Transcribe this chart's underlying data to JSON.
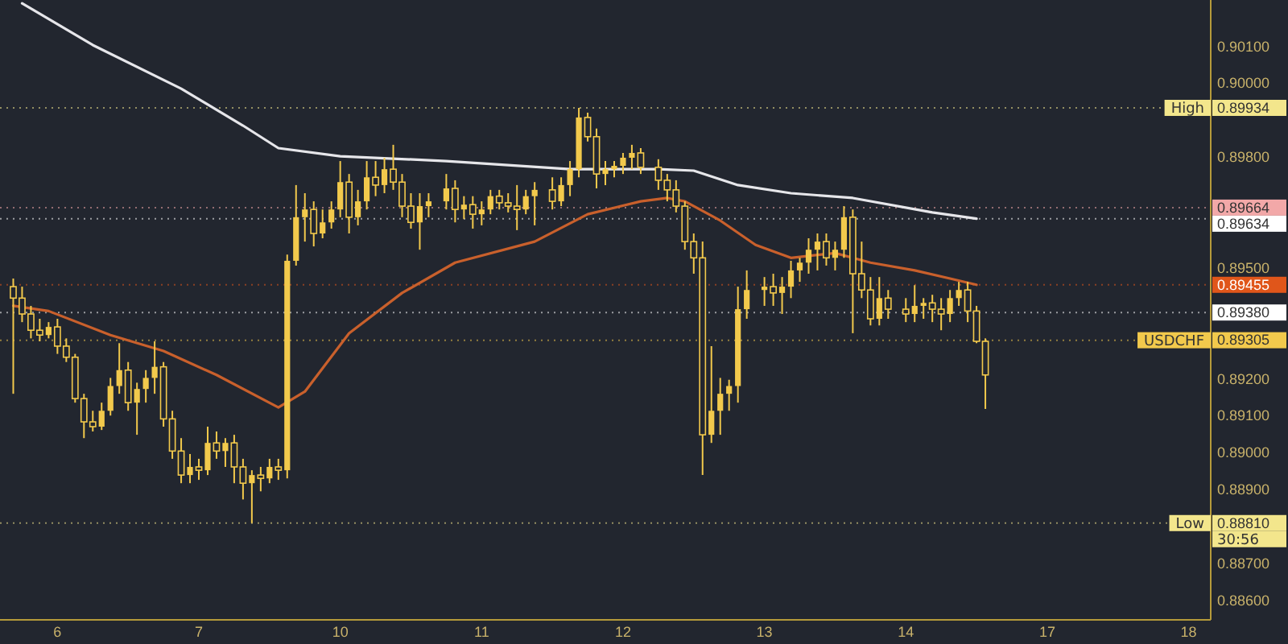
{
  "chart_data": {
    "type": "candlestick",
    "color": "#f2c94c",
    "categories": [
      null,
      null,
      null,
      null,
      null,
      null,
      "6",
      null,
      null,
      null,
      null,
      null,
      null,
      null,
      null,
      null,
      null,
      null,
      null,
      null,
      null,
      null,
      "7",
      null,
      null,
      null,
      null,
      null,
      null,
      null,
      null,
      null,
      null,
      null,
      null,
      null,
      null,
      null,
      "10",
      null,
      null,
      null,
      null,
      null,
      null,
      null,
      null,
      null,
      null,
      null,
      null,
      null,
      null,
      null,
      "11",
      null,
      null,
      null,
      null,
      null,
      null,
      null,
      null,
      null,
      null,
      null,
      null,
      null,
      null,
      null,
      "12",
      null,
      null,
      null,
      null,
      null,
      null,
      null,
      null,
      null,
      null,
      null,
      null,
      null,
      null,
      null,
      "13",
      null,
      null,
      null,
      null,
      null,
      null,
      null,
      null,
      null,
      null,
      null,
      null,
      null,
      null,
      null,
      "14",
      null,
      null,
      null,
      null,
      null,
      null,
      null,
      null,
      null,
      null,
      null,
      null,
      null,
      null,
      null,
      "17",
      null,
      null,
      null,
      null,
      null,
      null,
      null,
      null,
      null,
      null,
      null,
      null,
      null,
      null,
      null,
      "18",
      null,
      null
    ],
    "ohlc": [
      null,
      [
        0.8945,
        0.89472,
        0.8916,
        0.89419
      ],
      [
        0.89419,
        0.8945,
        0.89354,
        0.89376
      ],
      [
        0.89376,
        0.89398,
        0.8931,
        0.89332
      ],
      [
        0.89332,
        0.89363,
        0.89302,
        0.89319
      ],
      [
        0.89319,
        0.89354,
        0.8931,
        0.89341
      ],
      [
        0.89341,
        0.89363,
        0.89268,
        0.89289
      ],
      [
        0.89289,
        0.8931,
        0.89246,
        0.89259
      ],
      [
        0.89259,
        0.89268,
        0.89136,
        0.89147
      ],
      [
        0.89147,
        0.8916,
        0.8904,
        0.89084
      ],
      [
        0.89084,
        0.89114,
        0.89058,
        0.89071
      ],
      [
        0.89071,
        0.89136,
        0.89062,
        0.89114
      ],
      [
        0.89114,
        0.89203,
        0.89101,
        0.89181
      ],
      [
        0.89181,
        0.89297,
        0.8916,
        0.89224
      ],
      [
        0.89224,
        0.89246,
        0.89114,
        0.89136
      ],
      [
        0.89136,
        0.8919,
        0.89049,
        0.89173
      ],
      [
        0.89173,
        0.89224,
        0.89136,
        0.89203
      ],
      [
        0.89203,
        0.89302,
        0.8916,
        0.89233
      ],
      [
        0.89233,
        0.89246,
        0.89071,
        0.89092
      ],
      [
        0.89092,
        0.89114,
        0.88984,
        0.89005
      ],
      [
        0.89005,
        0.8904,
        0.88918,
        0.8894
      ],
      [
        0.8894,
        0.88997,
        0.88918,
        0.88962
      ],
      [
        0.88962,
        0.88984,
        0.88927,
        0.88953
      ],
      [
        0.88953,
        0.89071,
        0.8894,
        0.89027
      ],
      [
        0.89027,
        0.89058,
        0.88984,
        0.89005
      ],
      [
        0.89005,
        0.8904,
        0.88962,
        0.89027
      ],
      [
        0.89027,
        0.89049,
        0.88918,
        0.88962
      ],
      [
        0.88962,
        0.88984,
        0.88874,
        0.88918
      ],
      [
        0.88918,
        0.88953,
        0.8881,
        0.8894
      ],
      [
        0.8894,
        0.88962,
        0.88896,
        0.88931
      ],
      [
        0.88931,
        0.88984,
        0.88918,
        0.88962
      ],
      [
        0.88962,
        0.88984,
        0.88927,
        0.88953
      ],
      [
        0.88953,
        0.89537,
        0.88931,
        0.8952
      ],
      [
        0.8952,
        0.89725,
        0.89507,
        0.89638
      ],
      [
        0.89638,
        0.89703,
        0.89572,
        0.89659
      ],
      [
        0.89659,
        0.89681,
        0.89559,
        0.89594
      ],
      [
        0.89594,
        0.89659,
        0.89581,
        0.89624
      ],
      [
        0.89624,
        0.89681,
        0.89607,
        0.89659
      ],
      [
        0.89659,
        0.8979,
        0.89638,
        0.89733
      ],
      [
        0.89733,
        0.89755,
        0.89594,
        0.89638
      ],
      [
        0.89638,
        0.89712,
        0.89616,
        0.89681
      ],
      [
        0.89681,
        0.8979,
        0.89659,
        0.89746
      ],
      [
        0.89746,
        0.8979,
        0.89695,
        0.89725
      ],
      [
        0.89725,
        0.89799,
        0.89703,
        0.89768
      ],
      [
        0.89768,
        0.89834,
        0.89712,
        0.89733
      ],
      [
        0.89733,
        0.89755,
        0.89638,
        0.89668
      ],
      [
        0.89668,
        0.89703,
        0.89607,
        0.89624
      ],
      [
        0.89624,
        0.89703,
        0.8955,
        0.89668
      ],
      [
        0.89668,
        0.89703,
        0.89638,
        0.89681
      ],
      null,
      [
        0.89681,
        0.89755,
        0.89659,
        0.89716
      ],
      [
        0.89716,
        0.89738,
        0.89624,
        0.89659
      ],
      [
        0.89659,
        0.89695,
        0.89633,
        0.89672
      ],
      [
        0.89672,
        0.89695,
        0.89607,
        0.89646
      ],
      [
        0.89646,
        0.89681,
        0.89616,
        0.89659
      ],
      [
        0.89659,
        0.89712,
        0.89646,
        0.89695
      ],
      [
        0.89695,
        0.89712,
        0.89659,
        0.89677
      ],
      [
        0.89677,
        0.89703,
        0.89651,
        0.89668
      ],
      [
        0.89668,
        0.89725,
        0.89603,
        0.89659
      ],
      [
        0.89659,
        0.89712,
        0.89646,
        0.89695
      ],
      [
        0.89695,
        0.89733,
        0.89616,
        0.89712
      ],
      null,
      [
        0.89712,
        0.89746,
        0.89659,
        0.89681
      ],
      [
        0.89681,
        0.89746,
        0.89668,
        0.89725
      ],
      [
        0.89725,
        0.8979,
        0.89695,
        0.89768
      ],
      [
        0.89768,
        0.89934,
        0.89746,
        0.89908
      ],
      [
        0.89908,
        0.89921,
        0.89843,
        0.89856
      ],
      [
        0.89856,
        0.89878,
        0.89716,
        0.89755
      ],
      [
        0.89755,
        0.8979,
        0.89725,
        0.89768
      ],
      [
        0.89768,
        0.8979,
        0.89746,
        0.89777
      ],
      [
        0.89777,
        0.89812,
        0.89755,
        0.89799
      ],
      [
        0.89799,
        0.89834,
        0.89768,
        0.89812
      ],
      [
        0.89812,
        0.89825,
        0.89755,
        0.89773
      ],
      null,
      [
        0.89773,
        0.89795,
        0.89712,
        0.89738
      ],
      [
        0.89738,
        0.89755,
        0.89681,
        0.89712
      ],
      [
        0.89712,
        0.89738,
        0.89651,
        0.89668
      ],
      [
        0.89668,
        0.89681,
        0.8955,
        0.89572
      ],
      [
        0.89572,
        0.89594,
        0.89485,
        0.89528
      ],
      [
        0.89528,
        0.89572,
        0.8894,
        0.89049
      ],
      [
        0.89049,
        0.89289,
        0.89027,
        0.89114
      ],
      [
        0.89114,
        0.89203,
        0.89049,
        0.8916
      ],
      [
        0.8916,
        0.89198,
        0.89114,
        0.89181
      ],
      [
        0.89181,
        0.8945,
        0.89136,
        0.89389
      ],
      [
        0.89389,
        0.89494,
        0.89363,
        0.89441
      ],
      null,
      [
        0.89441,
        0.89476,
        0.89398,
        0.8945
      ],
      [
        0.8945,
        0.89485,
        0.89398,
        0.89433
      ],
      [
        0.89433,
        0.89476,
        0.89376,
        0.8945
      ],
      [
        0.8945,
        0.8952,
        0.89419,
        0.89494
      ],
      [
        0.89494,
        0.89528,
        0.89463,
        0.89515
      ],
      [
        0.89515,
        0.89581,
        0.89485,
        0.8955
      ],
      [
        0.8955,
        0.89594,
        0.89494,
        0.89572
      ],
      [
        0.89572,
        0.89594,
        0.89507,
        0.89528
      ],
      [
        0.89528,
        0.89572,
        0.89494,
        0.8955
      ],
      [
        0.8955,
        0.89668,
        0.89528,
        0.89638
      ],
      [
        0.89638,
        0.89659,
        0.89324,
        0.89485
      ],
      [
        0.89485,
        0.89572,
        0.89419,
        0.89441
      ],
      [
        0.89441,
        0.89476,
        0.89345,
        0.89363
      ],
      [
        0.89363,
        0.89476,
        0.89345,
        0.89419
      ],
      [
        0.89419,
        0.89441,
        0.89363,
        0.89389
      ],
      null,
      [
        0.89389,
        0.89419,
        0.89354,
        0.89376
      ],
      [
        0.89376,
        0.89454,
        0.89354,
        0.89398
      ],
      [
        0.89398,
        0.89419,
        0.89363,
        0.89406
      ],
      [
        0.89406,
        0.89428,
        0.89354,
        0.89389
      ],
      [
        0.89389,
        0.89419,
        0.89332,
        0.89376
      ],
      [
        0.89376,
        0.89441,
        0.89354,
        0.89419
      ],
      [
        0.89419,
        0.89463,
        0.89398,
        0.89441
      ],
      [
        0.89441,
        0.89463,
        0.89354,
        0.89384
      ],
      [
        0.89384,
        0.89398,
        0.89297,
        0.89302
      ],
      [
        0.89302,
        0.8931,
        0.89119,
        0.89211
      ],
      null,
      null,
      null,
      null,
      null,
      null,
      null,
      null,
      null,
      null,
      null,
      null,
      null,
      null,
      null,
      null,
      null,
      null,
      null,
      null,
      null,
      null,
      null,
      null,
      null
    ],
    "series": [
      {
        "type": "line",
        "color": "#e6e6ea",
        "values": [
          null,
          null,
          0.90217,
          null,
          null,
          null,
          null,
          null,
          null,
          null,
          0.90104,
          null,
          null,
          null,
          null,
          null,
          null,
          null,
          null,
          null,
          0.89986,
          null,
          null,
          null,
          null,
          null,
          null,
          0.89886,
          null,
          null,
          null,
          0.89825,
          null,
          null,
          null,
          null,
          null,
          null,
          0.89803,
          null,
          null,
          null,
          null,
          null,
          null,
          null,
          null,
          null,
          null,
          null,
          0.8979,
          null,
          null,
          null,
          null,
          null,
          null,
          null,
          null,
          null,
          null,
          null,
          null,
          null,
          0.89768,
          null,
          null,
          null,
          null,
          null,
          null,
          null,
          null,
          null,
          0.89768,
          null,
          null,
          null,
          0.89764,
          null,
          null,
          null,
          null,
          0.89725,
          null,
          null,
          null,
          null,
          null,
          0.89703,
          null,
          null,
          null,
          null,
          null,
          null,
          0.8969,
          null,
          null,
          null,
          null,
          null,
          null,
          null,
          null,
          0.89651,
          null,
          null,
          null,
          null,
          0.89634,
          null,
          null,
          null,
          null,
          null,
          null,
          null,
          null,
          null,
          null,
          null,
          null,
          null,
          null,
          null,
          null,
          null,
          null,
          null,
          null,
          null,
          null,
          null,
          null,
          null,
          null
        ]
      },
      {
        "type": "line",
        "color": "#c9602c",
        "values": [
          null,
          0.89398,
          null,
          null,
          null,
          0.89384,
          null,
          null,
          null,
          null,
          null,
          null,
          0.89319,
          null,
          null,
          null,
          null,
          null,
          0.89276,
          null,
          null,
          null,
          null,
          null,
          0.89211,
          null,
          null,
          null,
          null,
          null,
          null,
          0.89123,
          null,
          null,
          0.89166,
          null,
          null,
          null,
          null,
          0.89324,
          null,
          null,
          null,
          null,
          null,
          0.89433,
          null,
          null,
          null,
          null,
          null,
          0.89515,
          null,
          null,
          null,
          null,
          null,
          null,
          null,
          null,
          0.89572,
          null,
          null,
          null,
          null,
          null,
          0.89646,
          null,
          null,
          null,
          null,
          null,
          0.89681,
          null,
          null,
          0.8969,
          null,
          0.89681,
          null,
          null,
          null,
          0.89629,
          null,
          null,
          null,
          0.89563,
          null,
          null,
          null,
          0.89528,
          null,
          null,
          null,
          null,
          0.89541,
          null,
          null,
          null,
          0.89515,
          null,
          null,
          null,
          null,
          0.89494,
          null,
          null,
          null,
          0.89472,
          null,
          null,
          0.89455,
          null,
          null,
          null,
          null,
          null,
          null,
          null,
          null,
          null,
          null,
          null,
          null,
          null,
          null,
          null,
          null,
          null,
          null,
          null,
          null,
          null,
          null,
          null,
          null,
          null,
          null
        ]
      }
    ],
    "ylim": [
      0.88548,
      0.90226
    ],
    "yticks": [
      {
        "value": 0.901,
        "label": "0.90100"
      },
      {
        "value": 0.9,
        "label": "0.90000"
      },
      {
        "value": 0.89934,
        "label": "0.89934"
      },
      {
        "value": 0.898,
        "label": "0.89800"
      },
      {
        "value": 0.89664,
        "label": "0.89664"
      },
      {
        "value": 0.89634,
        "label": "0.89634"
      },
      {
        "value": 0.895,
        "label": "0.89500"
      },
      {
        "value": 0.89455,
        "label": "0.89455"
      },
      {
        "value": 0.8938,
        "label": "0.89380"
      },
      {
        "value": 0.89305,
        "label": "0.89305"
      },
      {
        "value": 0.892,
        "label": "0.89200"
      },
      {
        "value": 0.891,
        "label": "0.89100"
      },
      {
        "value": 0.89,
        "label": "0.89000"
      },
      {
        "value": 0.889,
        "label": "0.88900"
      },
      {
        "value": 0.8881,
        "label": "0.88810"
      },
      {
        "value": 0.887,
        "label": "0.88700"
      },
      {
        "value": 0.886,
        "label": "0.88600"
      }
    ],
    "ref_lines": [
      {
        "axis": "y",
        "value": 0.89934,
        "label": "High",
        "color": "#f3e68c",
        "line_style": "dotted"
      },
      {
        "axis": "y",
        "value": 0.8881,
        "label": "Low",
        "color": "#f3e68c",
        "line_style": "dotted"
      },
      {
        "axis": "y",
        "value": 0.89664,
        "color": "#f2a8a8",
        "line_style": "dotted"
      },
      {
        "axis": "y",
        "value": 0.89634,
        "color": "#ffffff",
        "line_style": "dotted"
      },
      {
        "axis": "y",
        "value": 0.89455,
        "color": "#e0561a",
        "line_style": "dotted"
      },
      {
        "axis": "y",
        "value": 0.8938,
        "color": "#ffffff",
        "line_style": "dotted"
      },
      {
        "axis": "y",
        "value": 0.89305,
        "label": "USDCHF",
        "color": "#f2c94c",
        "line_style": "dotted"
      }
    ],
    "annotations": [
      "30:56"
    ]
  }
}
